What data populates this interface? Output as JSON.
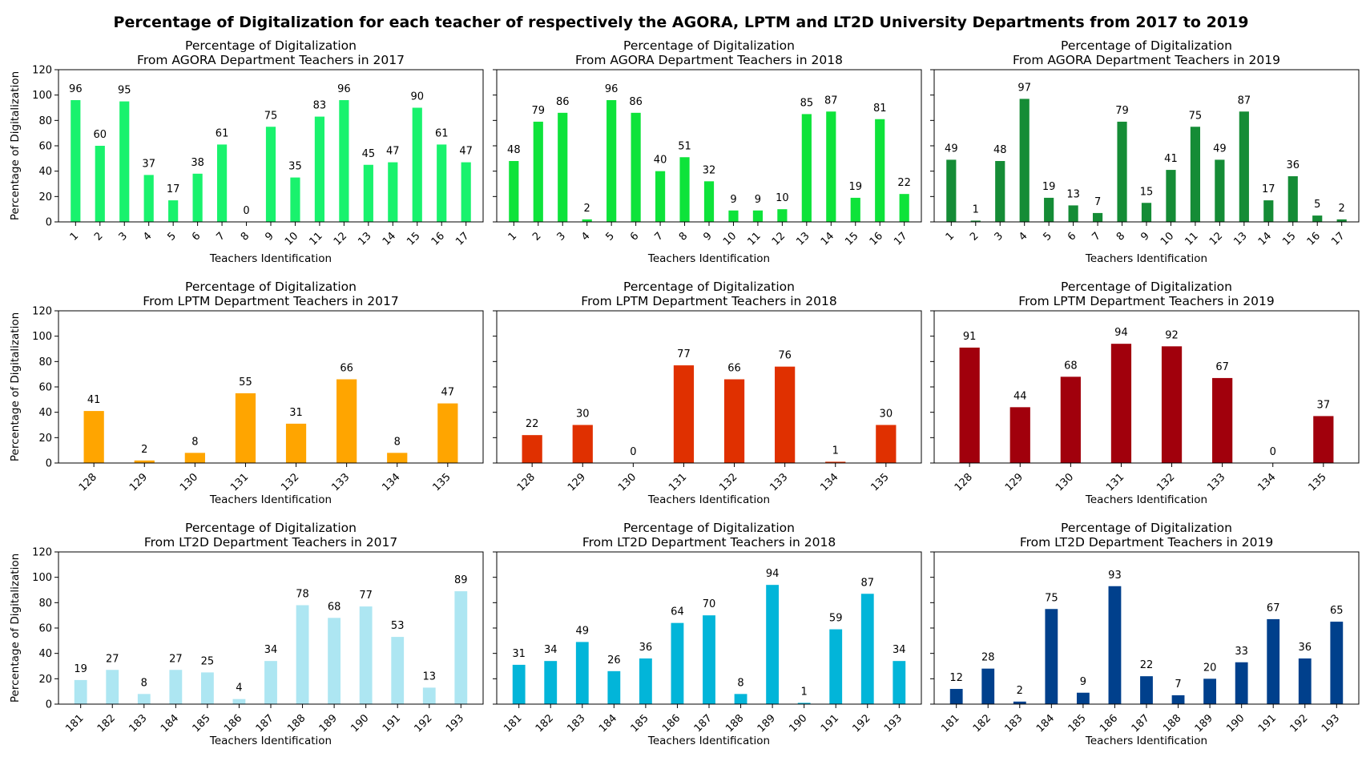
{
  "suptitle": "Percentage of Digitalization for each teacher of respectively the AGORA, LPTM and LT2D University Departments from 2017 to 2019",
  "chart_data": [
    {
      "type": "bar",
      "title": [
        "Percentage of Digitalization",
        "From AGORA Department Teachers in 2017"
      ],
      "xlabel": "Teachers Identification",
      "ylabel": "Percentage of Digitalization",
      "ylim": [
        0,
        120
      ],
      "yticks": [
        0,
        20,
        40,
        60,
        80,
        100,
        120
      ],
      "color": "#19f26d",
      "categories": [
        "1",
        "2",
        "3",
        "4",
        "5",
        "6",
        "7",
        "8",
        "9",
        "10",
        "11",
        "12",
        "13",
        "14",
        "15",
        "16",
        "17"
      ],
      "values": [
        96,
        60,
        95,
        37,
        17,
        38,
        61,
        0,
        75,
        35,
        83,
        96,
        45,
        47,
        90,
        61,
        47
      ]
    },
    {
      "type": "bar",
      "title": [
        "Percentage of Digitalization",
        "From AGORA Department Teachers in 2018"
      ],
      "xlabel": "Teachers Identification",
      "ylabel": "",
      "ylim": [
        0,
        120
      ],
      "yticks": [
        0,
        20,
        40,
        60,
        80,
        100,
        120
      ],
      "color": "#0ee33a",
      "categories": [
        "1",
        "2",
        "3",
        "4",
        "5",
        "6",
        "7",
        "8",
        "9",
        "10",
        "11",
        "12",
        "13",
        "14",
        "15",
        "16",
        "17"
      ],
      "values": [
        48,
        79,
        86,
        2,
        96,
        86,
        40,
        51,
        32,
        9,
        9,
        10,
        85,
        87,
        19,
        81,
        22
      ]
    },
    {
      "type": "bar",
      "title": [
        "Percentage of Digitalization",
        "From AGORA Department Teachers in 2019"
      ],
      "xlabel": "Teachers Identification",
      "ylabel": "",
      "ylim": [
        0,
        120
      ],
      "yticks": [
        0,
        20,
        40,
        60,
        80,
        100,
        120
      ],
      "color": "#158c36",
      "categories": [
        "1",
        "2",
        "3",
        "4",
        "5",
        "6",
        "7",
        "8",
        "9",
        "10",
        "11",
        "12",
        "13",
        "14",
        "15",
        "16",
        "17"
      ],
      "values": [
        49,
        1,
        48,
        97,
        19,
        13,
        7,
        79,
        15,
        41,
        75,
        49,
        87,
        17,
        36,
        5,
        2
      ]
    },
    {
      "type": "bar",
      "title": [
        "Percentage of Digitalization",
        "From LPTM Department Teachers in 2017"
      ],
      "xlabel": "Teachers Identification",
      "ylabel": "Percentage of Digitalization",
      "ylim": [
        0,
        120
      ],
      "yticks": [
        0,
        20,
        40,
        60,
        80,
        100,
        120
      ],
      "color": "#ffa500",
      "categories": [
        "128",
        "129",
        "130",
        "131",
        "132",
        "133",
        "134",
        "135"
      ],
      "values": [
        41,
        2,
        8,
        55,
        31,
        66,
        8,
        47
      ]
    },
    {
      "type": "bar",
      "title": [
        "Percentage of Digitalization",
        "From LPTM Department Teachers in 2018"
      ],
      "xlabel": "Teachers Identification",
      "ylabel": "",
      "ylim": [
        0,
        120
      ],
      "yticks": [
        0,
        20,
        40,
        60,
        80,
        100,
        120
      ],
      "color": "#e03000",
      "categories": [
        "128",
        "129",
        "130",
        "131",
        "132",
        "133",
        "134",
        "135"
      ],
      "values": [
        22,
        30,
        0,
        77,
        66,
        76,
        1,
        30
      ]
    },
    {
      "type": "bar",
      "title": [
        "Percentage of Digitalization",
        "From LPTM Department Teachers in 2019"
      ],
      "xlabel": "Teachers Identification",
      "ylabel": "",
      "ylim": [
        0,
        120
      ],
      "yticks": [
        0,
        20,
        40,
        60,
        80,
        100,
        120
      ],
      "color": "#a1000c",
      "categories": [
        "128",
        "129",
        "130",
        "131",
        "132",
        "133",
        "134",
        "135"
      ],
      "values": [
        91,
        44,
        68,
        94,
        92,
        67,
        0,
        37
      ]
    },
    {
      "type": "bar",
      "title": [
        "Percentage of Digitalization",
        "From LT2D Department Teachers in 2017"
      ],
      "xlabel": "Teachers Identification",
      "ylabel": "Percentage of Digitalization",
      "ylim": [
        0,
        120
      ],
      "yticks": [
        0,
        20,
        40,
        60,
        80,
        100,
        120
      ],
      "color": "#ade6f2",
      "categories": [
        "181",
        "182",
        "183",
        "184",
        "185",
        "186",
        "187",
        "188",
        "189",
        "190",
        "191",
        "192",
        "193"
      ],
      "values": [
        19,
        27,
        8,
        27,
        25,
        4,
        34,
        78,
        68,
        77,
        53,
        13,
        89
      ]
    },
    {
      "type": "bar",
      "title": [
        "Percentage of Digitalization",
        "From LT2D Department Teachers in 2018"
      ],
      "xlabel": "Teachers Identification",
      "ylabel": "",
      "ylim": [
        0,
        120
      ],
      "yticks": [
        0,
        20,
        40,
        60,
        80,
        100,
        120
      ],
      "color": "#02b5d9",
      "categories": [
        "181",
        "182",
        "183",
        "184",
        "185",
        "186",
        "187",
        "188",
        "189",
        "190",
        "191",
        "192",
        "193"
      ],
      "values": [
        31,
        34,
        49,
        26,
        36,
        64,
        70,
        8,
        94,
        1,
        59,
        87,
        34
      ]
    },
    {
      "type": "bar",
      "title": [
        "Percentage of Digitalization",
        "From LT2D Department Teachers in 2019"
      ],
      "xlabel": "Teachers Identification",
      "ylabel": "",
      "ylim": [
        0,
        120
      ],
      "yticks": [
        0,
        20,
        40,
        60,
        80,
        100,
        120
      ],
      "color": "#00408c",
      "categories": [
        "181",
        "182",
        "183",
        "184",
        "185",
        "186",
        "187",
        "188",
        "189",
        "190",
        "191",
        "192",
        "193"
      ],
      "values": [
        12,
        28,
        2,
        75,
        9,
        93,
        22,
        7,
        20,
        33,
        67,
        36,
        65
      ]
    }
  ]
}
